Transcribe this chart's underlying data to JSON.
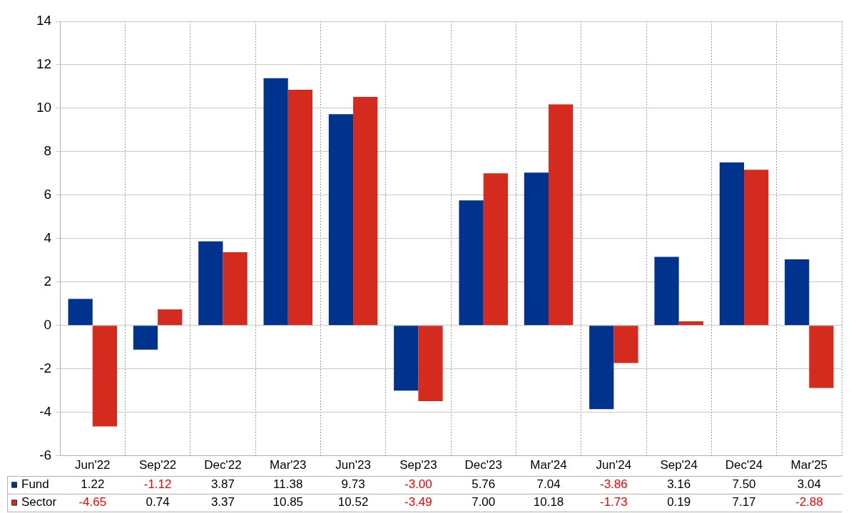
{
  "chart_data": {
    "type": "bar",
    "categories": [
      "Jun'22",
      "Sep'22",
      "Dec'22",
      "Mar'23",
      "Jun'23",
      "Sep'23",
      "Dec'23",
      "Mar'24",
      "Jun'24",
      "Sep'24",
      "Dec'24",
      "Mar'25"
    ],
    "series": [
      {
        "name": "Fund",
        "color": "#00338d",
        "values": [
          1.22,
          -1.12,
          3.87,
          11.38,
          9.73,
          -3.0,
          5.76,
          7.04,
          -3.86,
          3.16,
          7.5,
          3.04
        ],
        "value_labels": [
          "1.22",
          "-1.12",
          "3.87",
          "11.38",
          "9.73",
          "-3.00",
          "5.76",
          "7.04",
          "-3.86",
          "3.16",
          "7.50",
          "3.04"
        ]
      },
      {
        "name": "Sector",
        "color": "#d52b1e",
        "values": [
          -4.65,
          0.74,
          3.37,
          10.85,
          10.52,
          -3.49,
          7.0,
          10.18,
          -1.73,
          0.19,
          7.17,
          -2.88
        ],
        "value_labels": [
          "-4.65",
          "0.74",
          "3.37",
          "10.85",
          "10.52",
          "-3.49",
          "7.00",
          "10.18",
          "-1.73",
          "0.19",
          "7.17",
          "-2.88"
        ]
      }
    ],
    "ylim": [
      -6,
      14
    ],
    "yticks": [
      -6,
      -4,
      -2,
      0,
      2,
      4,
      6,
      8,
      10,
      12,
      14
    ],
    "grid": true,
    "legend": "bottom left"
  }
}
